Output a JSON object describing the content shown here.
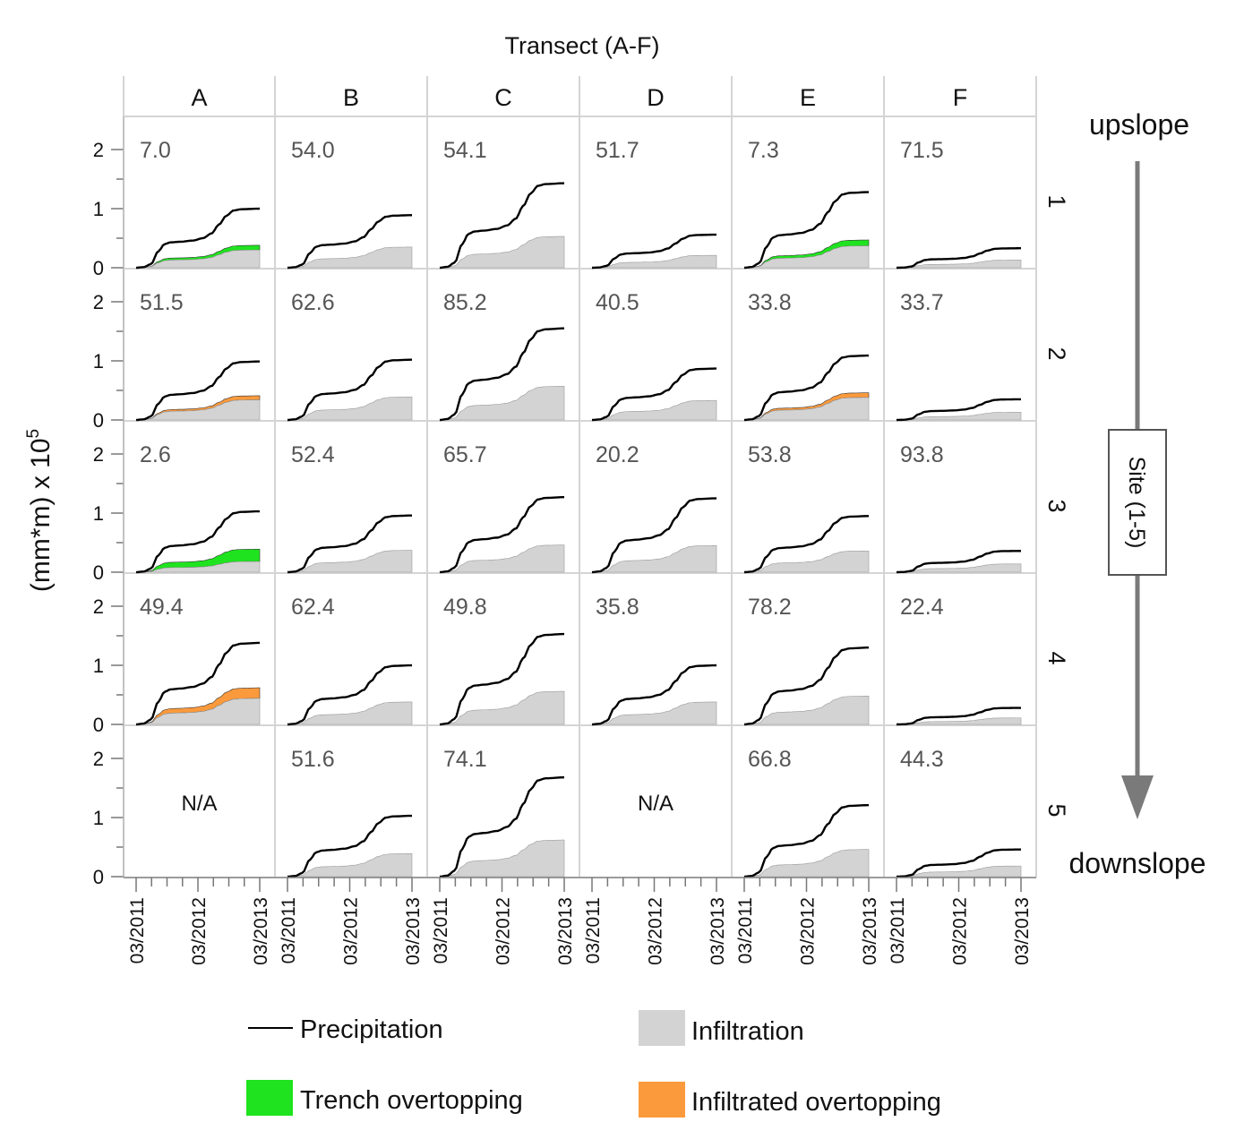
{
  "figure": {
    "top_label": "Transect (A-F)",
    "y_axis_label": "(mm*m) x 10",
    "y_axis_label_exp": "5",
    "site_box_label": "Site (1-5)",
    "upslope_label": "upslope",
    "downslope_label": "downslope",
    "na_label": "N/A"
  },
  "legend": {
    "precipitation": "Precipitation",
    "infiltration": "Infiltration",
    "trench": "Trench overtopping",
    "infiltrated": "Infiltrated overtopping"
  },
  "colors": {
    "precipitation": "#000000",
    "infiltration": "#d3d3d3",
    "trench": "#1fe31f",
    "infiltrated": "#fb9a3c",
    "grid": "#d4d4d4",
    "value_text": "#555555",
    "arrow": "#7a7a7a"
  },
  "chart_data": {
    "type": "area",
    "columns": [
      "A",
      "B",
      "C",
      "D",
      "E",
      "F"
    ],
    "rows": [
      "1",
      "2",
      "3",
      "4",
      "5"
    ],
    "ylim": [
      0,
      2.5
    ],
    "yticks": [
      "0",
      "1",
      "2"
    ],
    "xticks": [
      "03/2011",
      "03/2012",
      "03/2013"
    ],
    "panels": [
      {
        "col": "A",
        "row": "1",
        "value": "7.0",
        "precip_total": 1.0,
        "infil_total": 0.3,
        "overtop_total": 0.38,
        "overtop_type": "trench"
      },
      {
        "col": "B",
        "row": "1",
        "value": "54.0",
        "precip_total": 0.89,
        "infil_total": 0.35,
        "overtop_total": 0,
        "overtop_type": "none"
      },
      {
        "col": "C",
        "row": "1",
        "value": "54.1",
        "precip_total": 1.43,
        "infil_total": 0.53,
        "overtop_total": 0,
        "overtop_type": "none"
      },
      {
        "col": "D",
        "row": "1",
        "value": "51.7",
        "precip_total": 0.56,
        "infil_total": 0.21,
        "overtop_total": 0,
        "overtop_type": "none"
      },
      {
        "col": "E",
        "row": "1",
        "value": "7.3",
        "precip_total": 1.28,
        "infil_total": 0.37,
        "overtop_total": 0.47,
        "overtop_type": "trench"
      },
      {
        "col": "F",
        "row": "1",
        "value": "71.5",
        "precip_total": 0.33,
        "infil_total": 0.13,
        "overtop_total": 0,
        "overtop_type": "none"
      },
      {
        "col": "A",
        "row": "2",
        "value": "51.5",
        "precip_total": 0.99,
        "infil_total": 0.34,
        "overtop_total": 0.41,
        "overtop_type": "infiltrated"
      },
      {
        "col": "B",
        "row": "2",
        "value": "62.6",
        "precip_total": 1.02,
        "infil_total": 0.39,
        "overtop_total": 0,
        "overtop_type": "none"
      },
      {
        "col": "C",
        "row": "2",
        "value": "85.2",
        "precip_total": 1.55,
        "infil_total": 0.57,
        "overtop_total": 0,
        "overtop_type": "none"
      },
      {
        "col": "D",
        "row": "2",
        "value": "40.5",
        "precip_total": 0.87,
        "infil_total": 0.33,
        "overtop_total": 0,
        "overtop_type": "none"
      },
      {
        "col": "E",
        "row": "2",
        "value": "33.8",
        "precip_total": 1.09,
        "infil_total": 0.38,
        "overtop_total": 0.46,
        "overtop_type": "infiltrated"
      },
      {
        "col": "F",
        "row": "2",
        "value": "33.7",
        "precip_total": 0.35,
        "infil_total": 0.13,
        "overtop_total": 0,
        "overtop_type": "none"
      },
      {
        "col": "A",
        "row": "3",
        "value": "2.6",
        "precip_total": 1.03,
        "infil_total": 0.18,
        "overtop_total": 0.39,
        "overtop_type": "trench"
      },
      {
        "col": "B",
        "row": "3",
        "value": "52.4",
        "precip_total": 0.96,
        "infil_total": 0.37,
        "overtop_total": 0,
        "overtop_type": "none"
      },
      {
        "col": "C",
        "row": "3",
        "value": "65.7",
        "precip_total": 1.27,
        "infil_total": 0.46,
        "overtop_total": 0,
        "overtop_type": "none"
      },
      {
        "col": "D",
        "row": "3",
        "value": "20.2",
        "precip_total": 1.25,
        "infil_total": 0.45,
        "overtop_total": 0,
        "overtop_type": "none"
      },
      {
        "col": "E",
        "row": "3",
        "value": "53.8",
        "precip_total": 0.95,
        "infil_total": 0.36,
        "overtop_total": 0,
        "overtop_type": "none"
      },
      {
        "col": "F",
        "row": "3",
        "value": "93.8",
        "precip_total": 0.36,
        "infil_total": 0.14,
        "overtop_total": 0,
        "overtop_type": "none"
      },
      {
        "col": "A",
        "row": "4",
        "value": "49.4",
        "precip_total": 1.38,
        "infil_total": 0.44,
        "overtop_total": 0.62,
        "overtop_type": "infiltrated"
      },
      {
        "col": "B",
        "row": "4",
        "value": "62.4",
        "precip_total": 1.0,
        "infil_total": 0.38,
        "overtop_total": 0,
        "overtop_type": "none"
      },
      {
        "col": "C",
        "row": "4",
        "value": "49.8",
        "precip_total": 1.53,
        "infil_total": 0.56,
        "overtop_total": 0,
        "overtop_type": "none"
      },
      {
        "col": "D",
        "row": "4",
        "value": "35.8",
        "precip_total": 1.0,
        "infil_total": 0.38,
        "overtop_total": 0,
        "overtop_type": "none"
      },
      {
        "col": "E",
        "row": "4",
        "value": "78.2",
        "precip_total": 1.3,
        "infil_total": 0.48,
        "overtop_total": 0,
        "overtop_type": "none"
      },
      {
        "col": "F",
        "row": "4",
        "value": "22.4",
        "precip_total": 0.28,
        "infil_total": 0.11,
        "overtop_total": 0,
        "overtop_type": "none"
      },
      {
        "col": "A",
        "row": "5",
        "value": "",
        "na": true
      },
      {
        "col": "B",
        "row": "5",
        "value": "51.6",
        "precip_total": 1.03,
        "infil_total": 0.39,
        "overtop_total": 0,
        "overtop_type": "none"
      },
      {
        "col": "C",
        "row": "5",
        "value": "74.1",
        "precip_total": 1.68,
        "infil_total": 0.62,
        "overtop_total": 0,
        "overtop_type": "none"
      },
      {
        "col": "D",
        "row": "5",
        "value": "",
        "na": true
      },
      {
        "col": "E",
        "row": "5",
        "value": "66.8",
        "precip_total": 1.21,
        "infil_total": 0.46,
        "overtop_total": 0,
        "overtop_type": "none"
      },
      {
        "col": "F",
        "row": "5",
        "value": "44.3",
        "precip_total": 0.46,
        "infil_total": 0.18,
        "overtop_total": 0,
        "overtop_type": "none"
      }
    ]
  }
}
